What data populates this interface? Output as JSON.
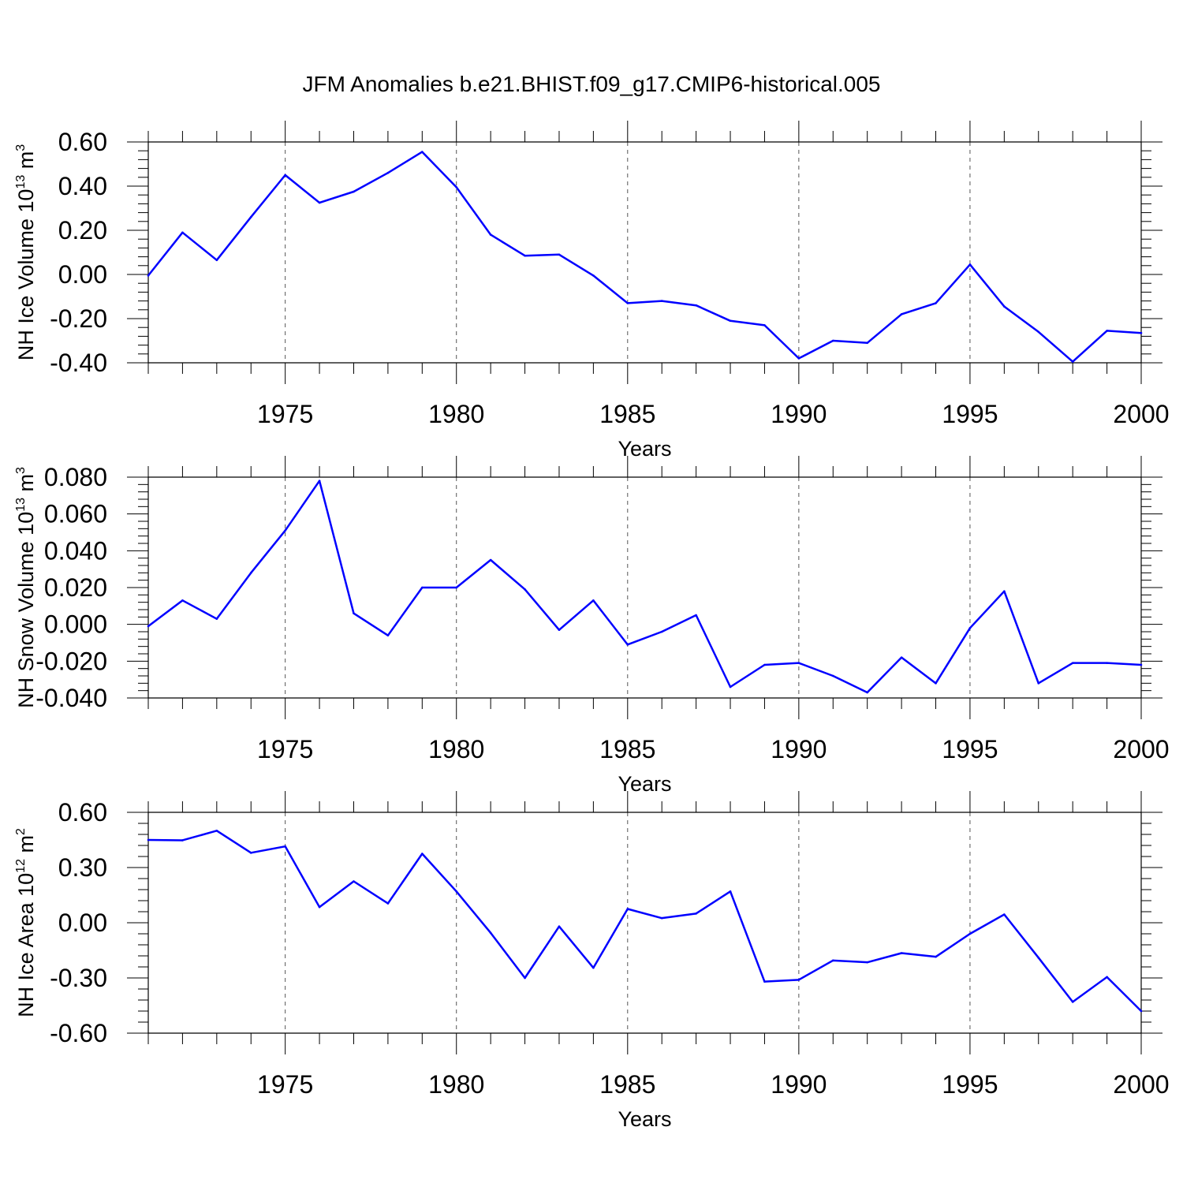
{
  "figure_title": "JFM Anomalies b.e21.BHIST.f09_g17.CMIP6-historical.005",
  "line_color": "#0000ff",
  "chart_data": [
    {
      "type": "line",
      "title": "",
      "xlabel": "Years",
      "ylabel": {
        "main": "NH Ice Volume 10",
        "exp": "13",
        "mid": " m",
        "unit_exp": "3"
      },
      "xlim": [
        1971,
        2000
      ],
      "ylim": [
        -0.4,
        0.6
      ],
      "yticks": [
        -0.4,
        -0.2,
        0.0,
        0.2,
        0.4,
        0.6
      ],
      "ytick_labels": [
        "-0.40",
        "-0.20",
        "0.00",
        "0.20",
        "0.40",
        "0.60"
      ],
      "xticks": [
        1975,
        1980,
        1985,
        1990,
        1995,
        2000
      ],
      "xtick_labels": [
        "1975",
        "1980",
        "1985",
        "1990",
        "1995",
        "2000"
      ],
      "grid": "dashed vertical at major x ticks",
      "x": [
        1971,
        1972,
        1973,
        1974,
        1975,
        1976,
        1977,
        1978,
        1979,
        1980,
        1981,
        1982,
        1983,
        1984,
        1985,
        1986,
        1987,
        1988,
        1989,
        1990,
        1991,
        1992,
        1993,
        1994,
        1995,
        1996,
        1997,
        1998,
        1999,
        2000
      ],
      "series": [
        {
          "values": [
            -0.005,
            0.19,
            0.065,
            0.26,
            0.45,
            0.325,
            0.375,
            0.46,
            0.555,
            0.395,
            0.18,
            0.085,
            0.09,
            -0.005,
            -0.13,
            -0.12,
            -0.14,
            -0.21,
            -0.23,
            -0.38,
            -0.3,
            -0.31,
            -0.18,
            -0.13,
            0.045,
            -0.145,
            -0.26,
            -0.395,
            -0.255,
            -0.265
          ]
        }
      ]
    },
    {
      "type": "line",
      "title": "",
      "xlabel": "Years",
      "ylabel": {
        "main": "NH Snow Volume 10",
        "exp": "13",
        "mid": " m",
        "unit_exp": "3"
      },
      "xlim": [
        1971,
        2000
      ],
      "ylim": [
        -0.04,
        0.08
      ],
      "yticks": [
        -0.04,
        -0.02,
        0.0,
        0.02,
        0.04,
        0.06,
        0.08
      ],
      "ytick_labels": [
        "-0.040",
        "-0.020",
        "0.000",
        "0.020",
        "0.040",
        "0.060",
        "0.080"
      ],
      "xticks": [
        1975,
        1980,
        1985,
        1990,
        1995,
        2000
      ],
      "xtick_labels": [
        "1975",
        "1980",
        "1985",
        "1990",
        "1995",
        "2000"
      ],
      "grid": "dashed vertical at major x ticks",
      "x": [
        1971,
        1972,
        1973,
        1974,
        1975,
        1976,
        1977,
        1978,
        1979,
        1980,
        1981,
        1982,
        1983,
        1984,
        1985,
        1986,
        1987,
        1988,
        1989,
        1990,
        1991,
        1992,
        1993,
        1994,
        1995,
        1996,
        1997,
        1998,
        1999,
        2000
      ],
      "series": [
        {
          "values": [
            -0.001,
            0.013,
            0.003,
            0.028,
            0.051,
            0.078,
            0.006,
            -0.006,
            0.02,
            0.02,
            0.035,
            0.019,
            -0.003,
            0.013,
            -0.011,
            -0.004,
            0.005,
            -0.034,
            -0.022,
            -0.021,
            -0.028,
            -0.037,
            -0.018,
            -0.032,
            -0.002,
            0.018,
            -0.032,
            -0.021,
            -0.021,
            -0.022
          ]
        }
      ]
    },
    {
      "type": "line",
      "title": "",
      "xlabel": "Years",
      "ylabel": {
        "main": "NH Ice Area 10",
        "exp": "12",
        "mid": " m",
        "unit_exp": "2"
      },
      "xlim": [
        1971,
        2000
      ],
      "ylim": [
        -0.6,
        0.6
      ],
      "yticks": [
        -0.6,
        -0.3,
        0.0,
        0.3,
        0.6
      ],
      "ytick_labels": [
        "-0.60",
        "-0.30",
        "0.00",
        "0.30",
        "0.60"
      ],
      "xticks": [
        1975,
        1980,
        1985,
        1990,
        1995,
        2000
      ],
      "xtick_labels": [
        "1975",
        "1980",
        "1985",
        "1990",
        "1995",
        "2000"
      ],
      "grid": "dashed vertical at major x ticks",
      "x": [
        1971,
        1972,
        1973,
        1974,
        1975,
        1976,
        1977,
        1978,
        1979,
        1980,
        1981,
        1982,
        1983,
        1984,
        1985,
        1986,
        1987,
        1988,
        1989,
        1990,
        1991,
        1992,
        1993,
        1994,
        1995,
        1996,
        1997,
        1998,
        1999,
        2000
      ],
      "series": [
        {
          "values": [
            0.45,
            0.448,
            0.5,
            0.38,
            0.415,
            0.085,
            0.225,
            0.105,
            0.375,
            0.17,
            -0.055,
            -0.3,
            -0.02,
            -0.245,
            0.075,
            0.025,
            0.05,
            0.17,
            -0.32,
            -0.31,
            -0.205,
            -0.215,
            -0.165,
            -0.185,
            -0.06,
            0.045,
            -0.19,
            -0.43,
            -0.295,
            -0.48
          ]
        }
      ]
    }
  ]
}
